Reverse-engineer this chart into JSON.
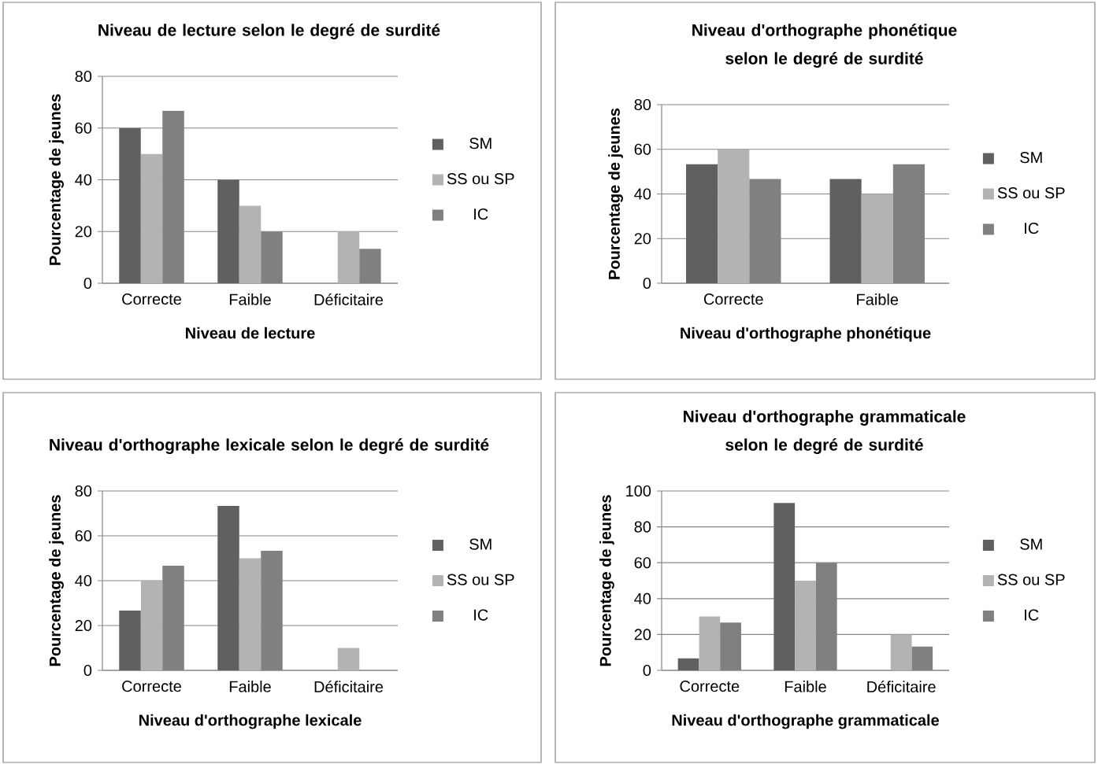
{
  "chart_data": [
    {
      "type": "bar",
      "title": "Niveau de lecture selon le degré de surdité",
      "xlabel": "Niveau de lecture",
      "ylabel": "Pourcentage de jeunes",
      "categories": [
        "Correcte",
        "Faible",
        "Déficitaire"
      ],
      "series": [
        {
          "name": "SM",
          "color": "#606060",
          "values": [
            60,
            40,
            0
          ]
        },
        {
          "name": "SS ou SP",
          "color": "#b3b3b3",
          "values": [
            50,
            30,
            20
          ]
        },
        {
          "name": "IC",
          "color": "#808080",
          "values": [
            66.7,
            20,
            13.3
          ]
        }
      ],
      "ylim": [
        0,
        80
      ],
      "yticks": [
        0,
        20,
        40,
        60,
        80
      ],
      "grid": "y",
      "legend": "right"
    },
    {
      "type": "bar",
      "title": "Niveau d'orthographe phonétique selon le degré de surdité",
      "xlabel": "Niveau d'orthographe phonétique",
      "ylabel": "Pourcentage de jeunes",
      "categories": [
        "Correcte",
        "Faible"
      ],
      "series": [
        {
          "name": "SM",
          "color": "#606060",
          "values": [
            53.3,
            46.7
          ]
        },
        {
          "name": "SS ou SP",
          "color": "#b3b3b3",
          "values": [
            60,
            40
          ]
        },
        {
          "name": "IC",
          "color": "#808080",
          "values": [
            46.7,
            53.3
          ]
        }
      ],
      "ylim": [
        0,
        80
      ],
      "yticks": [
        0,
        20,
        40,
        60,
        80
      ],
      "grid": "y",
      "legend": "right"
    },
    {
      "type": "bar",
      "title": "Niveau d'orthographe lexicale selon le degré de surdité",
      "xlabel": "Niveau d'orthographe lexicale",
      "ylabel": "Pourcentage de jeunes",
      "categories": [
        "Correcte",
        "Faible",
        "Déficitaire"
      ],
      "series": [
        {
          "name": "SM",
          "color": "#606060",
          "values": [
            26.7,
            73.3,
            0
          ]
        },
        {
          "name": "SS ou SP",
          "color": "#b3b3b3",
          "values": [
            40,
            50,
            10
          ]
        },
        {
          "name": "IC",
          "color": "#808080",
          "values": [
            46.7,
            53.3,
            0
          ]
        }
      ],
      "ylim": [
        0,
        80
      ],
      "yticks": [
        0,
        20,
        40,
        60,
        80
      ],
      "grid": "y",
      "legend": "right"
    },
    {
      "type": "bar",
      "title": "Niveau d'orthographe grammaticale selon le degré de surdité",
      "xlabel": "Niveau d'orthographe grammaticale",
      "ylabel": "Pourcentage de jeunes",
      "categories": [
        "Correcte",
        "Faible",
        "Déficitaire"
      ],
      "series": [
        {
          "name": "SM",
          "color": "#606060",
          "values": [
            6.7,
            93.3,
            0
          ]
        },
        {
          "name": "SS ou SP",
          "color": "#b3b3b3",
          "values": [
            30,
            50,
            20
          ]
        },
        {
          "name": "IC",
          "color": "#808080",
          "values": [
            26.7,
            60,
            13.3
          ]
        }
      ],
      "ylim": [
        0,
        100
      ],
      "yticks": [
        0,
        20,
        40,
        60,
        80,
        100
      ],
      "grid": "y",
      "legend": "right"
    }
  ]
}
